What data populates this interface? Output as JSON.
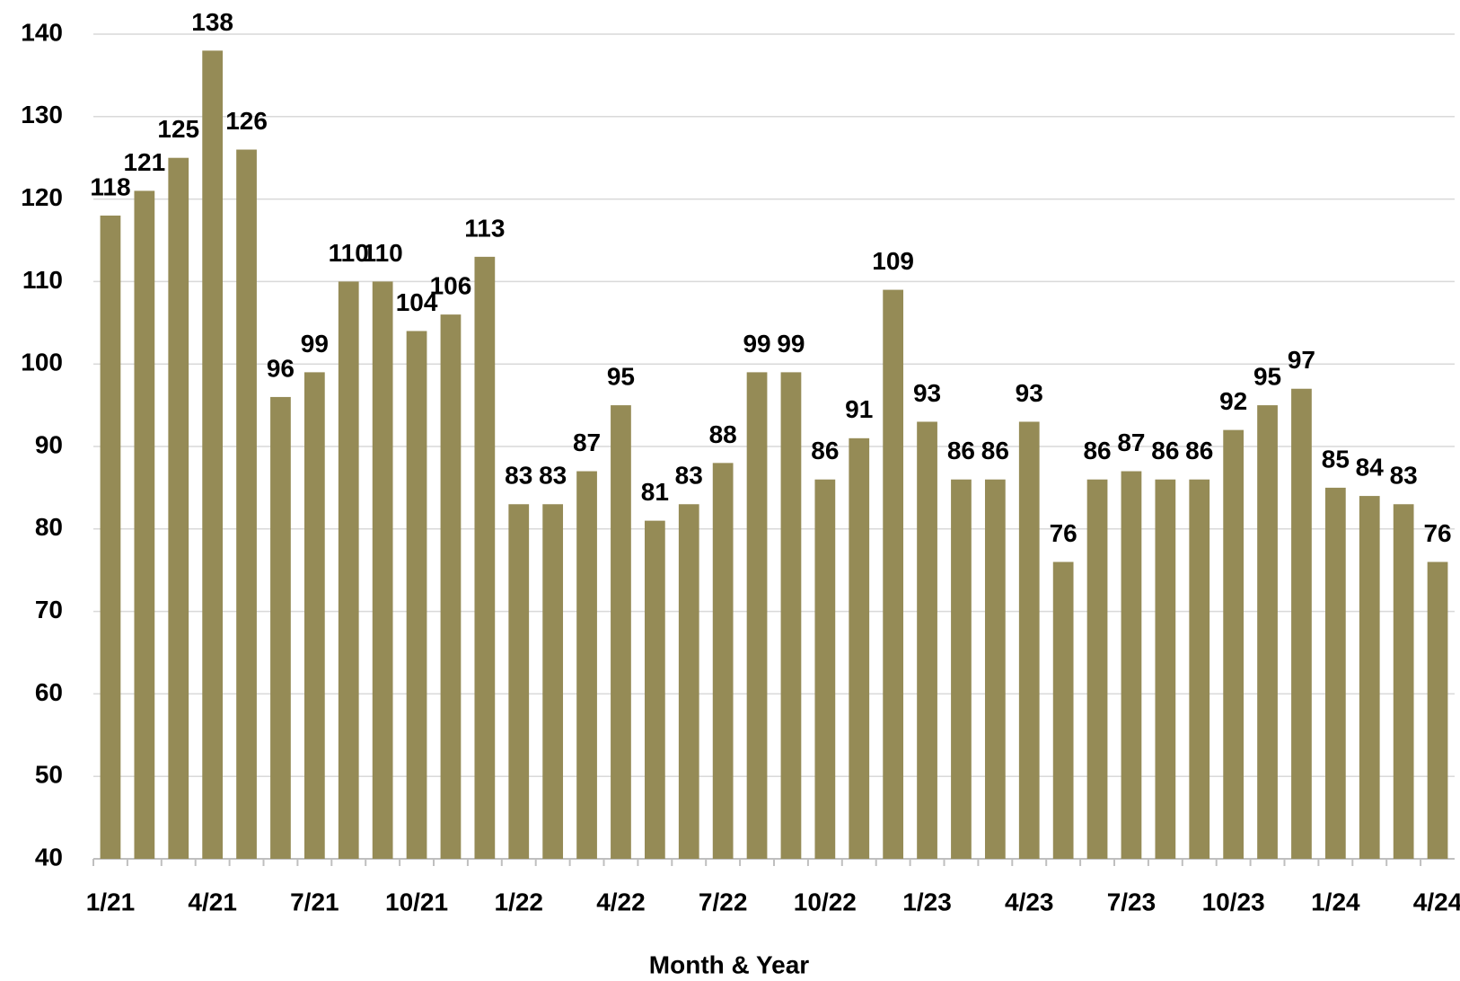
{
  "chart_data": {
    "type": "bar",
    "x_label": "Month & Year",
    "categories": [
      "1/21",
      null,
      null,
      "4/21",
      null,
      null,
      "7/21",
      null,
      null,
      "10/21",
      null,
      null,
      "1/22",
      null,
      null,
      "4/22",
      null,
      null,
      "7/22",
      null,
      null,
      "10/22",
      null,
      null,
      "1/23",
      null,
      null,
      "4/23",
      null,
      null,
      "7/23",
      null,
      null,
      "10/23",
      null,
      null,
      "1/24",
      null,
      null,
      "4/24"
    ],
    "values": [
      118,
      121,
      125,
      138,
      126,
      96,
      99,
      110,
      110,
      104,
      106,
      113,
      83,
      83,
      87,
      95,
      81,
      83,
      88,
      99,
      99,
      86,
      91,
      109,
      93,
      86,
      86,
      93,
      76,
      86,
      87,
      86,
      86,
      92,
      95,
      97,
      85,
      84,
      83,
      76
    ],
    "color": "#958b56",
    "ylim": [
      40,
      140
    ],
    "yticks": [
      40,
      50,
      60,
      70,
      80,
      90,
      100,
      110,
      120,
      130,
      140
    ],
    "grid": true
  }
}
